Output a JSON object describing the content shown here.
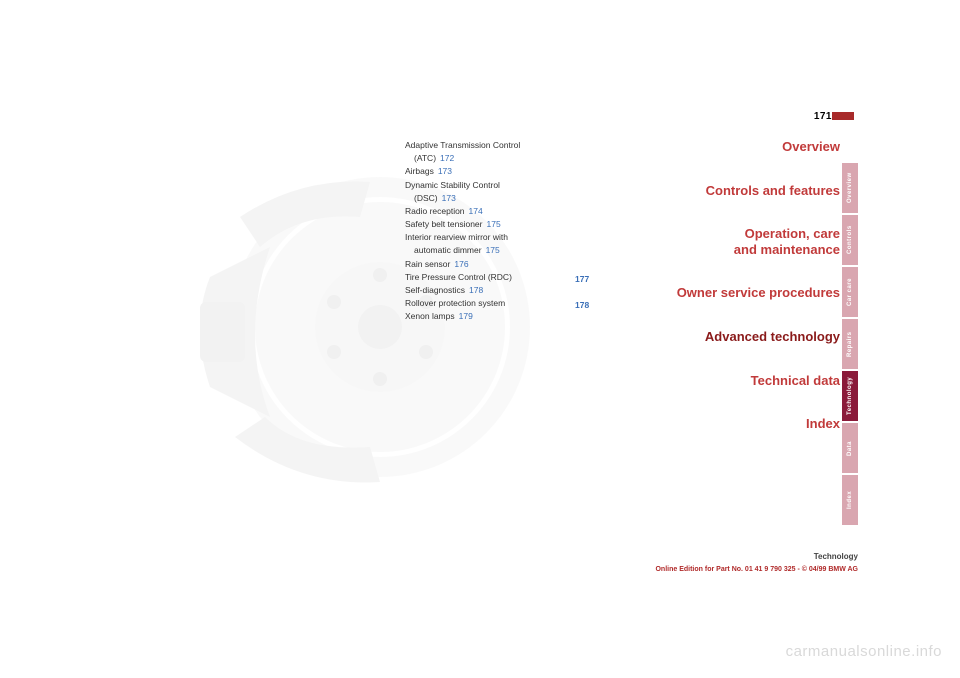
{
  "pageNumber": "171",
  "toc": [
    {
      "text": "Adaptive Transmission Control",
      "indent": false
    },
    {
      "text": "(ATC)",
      "indent": true,
      "page": "172"
    },
    {
      "text": "Airbags",
      "indent": false,
      "page": "173"
    },
    {
      "text": "Dynamic Stability Control",
      "indent": false
    },
    {
      "text": "(DSC)",
      "indent": true,
      "page": "173"
    },
    {
      "text": "Radio reception",
      "indent": false,
      "page": "174"
    },
    {
      "text": "Safety belt tensioner",
      "indent": false,
      "page": "175"
    },
    {
      "text": "Interior rearview mirror with",
      "indent": false
    },
    {
      "text": "automatic dimmer",
      "indent": true,
      "page": "175"
    },
    {
      "text": "Rain sensor",
      "indent": false,
      "page": "176"
    },
    {
      "text": "Tire Pressure Control (RDC)",
      "indent": false,
      "pageFloat": "177",
      "floatTop": 134
    },
    {
      "text": "Self-diagnostics",
      "indent": false,
      "page": "178"
    },
    {
      "text": "Rollover protection system",
      "indent": false,
      "pageFloat": "178",
      "floatTop": 160
    },
    {
      "text": "Xenon lamps",
      "indent": false,
      "page": "179"
    }
  ],
  "sections": [
    {
      "label": "Overview"
    },
    {
      "label": "Controls and features"
    },
    {
      "label": "Operation, care\nand maintenance"
    },
    {
      "label": "Owner service procedures"
    },
    {
      "label": "Advanced technology",
      "active": true
    },
    {
      "label": "Technical data"
    },
    {
      "label": "Index"
    }
  ],
  "tabs": [
    {
      "label": "Overview",
      "active": false
    },
    {
      "label": "Controls",
      "active": false
    },
    {
      "label": "Car care",
      "active": false
    },
    {
      "label": "Repairs",
      "active": false
    },
    {
      "label": "Technology",
      "active": true
    },
    {
      "label": "Data",
      "active": false
    },
    {
      "label": "Index",
      "active": false
    }
  ],
  "footerTitle": "Technology",
  "footerLine": "Online Edition for Part No. 01 41 9 790 325 - © 04/99 BMW AG",
  "watermark": "carmanualsonline.info",
  "colors": {
    "accentRed": "#c13a3a",
    "accentDarkRed": "#8a1a1a",
    "link": "#3a6fb7",
    "tabLight": "#d9a6b0",
    "tabActive": "#8a1a3a"
  },
  "rotor": {
    "diskFill": "#c9c9c9",
    "hubFill": "#b9b9b9",
    "caliperFill": "#9a9a9a"
  }
}
